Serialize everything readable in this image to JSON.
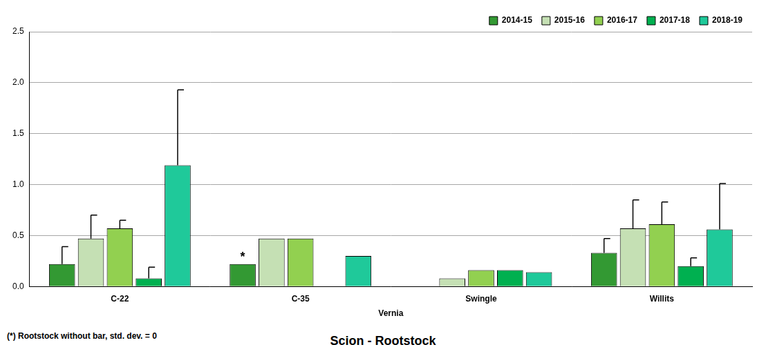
{
  "chart_data": {
    "type": "bar",
    "categories": [
      "C-22",
      "C-35",
      "Swingle",
      "Willits"
    ],
    "series": [
      {
        "name": "2014-15",
        "color": "#339933",
        "values": [
          0.22,
          0.22,
          0,
          0.33
        ],
        "errors": [
          0.17,
          0,
          0,
          0.14
        ]
      },
      {
        "name": "2015-16",
        "color": "#c5e0b4",
        "values": [
          0.47,
          0.47,
          0.08,
          0.57
        ],
        "errors": [
          0.23,
          0,
          0,
          0.28
        ]
      },
      {
        "name": "2016-17",
        "color": "#92d050",
        "values": [
          0.57,
          0.47,
          0.16,
          0.61
        ],
        "errors": [
          0.08,
          0,
          0,
          0.22
        ]
      },
      {
        "name": "2017-18",
        "color": "#00b050",
        "values": [
          0.08,
          0,
          0.16,
          0.2
        ],
        "errors": [
          0.11,
          0,
          0,
          0.08
        ]
      },
      {
        "name": "2018-19",
        "color": "#1fc99a",
        "values": [
          1.19,
          0.3,
          0.14,
          0.56
        ],
        "errors": [
          0.74,
          0,
          0,
          0.45
        ]
      }
    ],
    "group_label": "Vernia",
    "x_label": "Scion - Rootstock",
    "footnote": "(*) Rootstock without bar, std. dev. = 0",
    "annotations": [
      {
        "text": "*",
        "category": "C-35",
        "series": "2014-15"
      }
    ],
    "ylim": [
      0,
      2.5
    ],
    "yticks": [
      {
        "value": 0,
        "label": "0.0"
      },
      0.5,
      {
        "value": 1,
        "label": "1.0"
      },
      1.5,
      {
        "value": 2,
        "label": "2.0"
      },
      2.5
    ],
    "grid": true,
    "legend": "top-right"
  }
}
